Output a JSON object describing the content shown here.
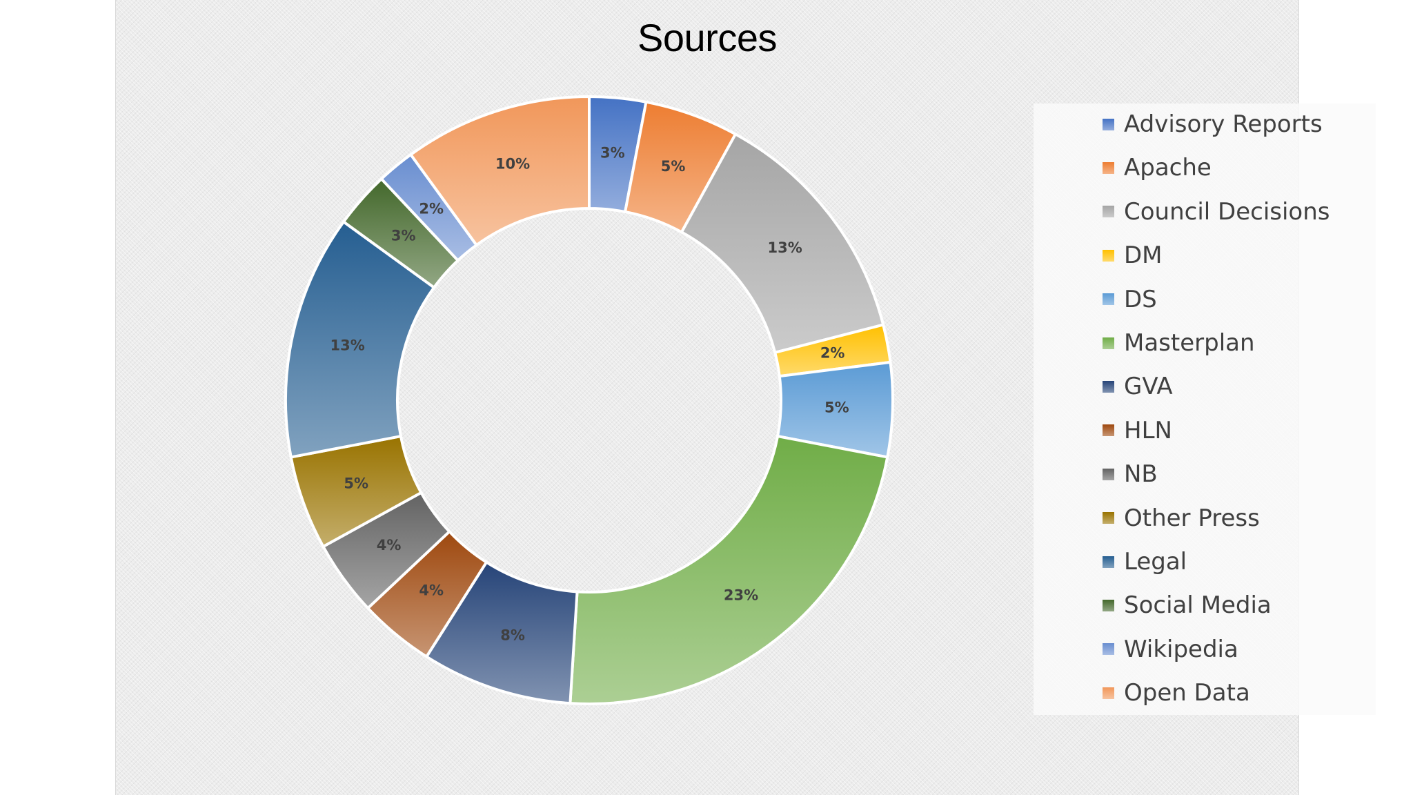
{
  "chart_data": {
    "type": "pie",
    "style": "doughnut",
    "title": "Sources",
    "legend_position": "right",
    "categories": [
      "Advisory Reports",
      "Apache",
      "Council Decisions",
      "DM",
      "DS",
      "Masterplan",
      "GVA",
      "HLN",
      "NB",
      "Other Press",
      "Legal",
      "Social Media",
      "Wikipedia",
      "Open Data"
    ],
    "values": [
      3,
      5,
      13,
      2,
      5,
      23,
      8,
      4,
      4,
      5,
      13,
      3,
      2,
      10
    ],
    "data_labels": [
      "3%",
      "5%",
      "13%",
      "2%",
      "5%",
      "23%",
      "8%",
      "4%",
      "4%",
      "5%",
      "13%",
      "3%",
      "2%",
      "10%"
    ],
    "colors": [
      "#4472c4",
      "#ed7d31",
      "#a5a5a5",
      "#ffc000",
      "#5b9bd5",
      "#70ad47",
      "#264478",
      "#9e480e",
      "#636363",
      "#997300",
      "#255e91",
      "#43682b",
      "#698ed0",
      "#f1975a"
    ]
  }
}
